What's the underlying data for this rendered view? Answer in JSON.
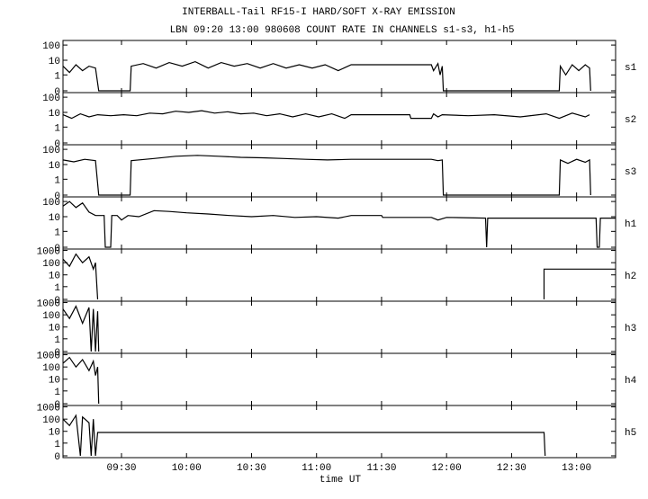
{
  "title": "INTERBALL-Tail RF15-I HARD/SOFT X-RAY EMISSION",
  "subtitle": "LBN 09:20 13:00 980608  COUNT RATE IN CHANNELS s1-s3, h1-h5",
  "x_axis": {
    "label": "time UT",
    "xlim": [
      543,
      798
    ],
    "xticks": [
      {
        "value": 570,
        "label": "09:30"
      },
      {
        "value": 600,
        "label": "10:00"
      },
      {
        "value": 630,
        "label": "10:30"
      },
      {
        "value": 660,
        "label": "11:00"
      },
      {
        "value": 690,
        "label": "11:30"
      },
      {
        "value": 720,
        "label": "12:00"
      },
      {
        "value": 750,
        "label": "12:30"
      },
      {
        "value": 780,
        "label": "13:00"
      }
    ]
  },
  "chart_data": [
    {
      "type": "line",
      "label": "s1",
      "color": "#000000",
      "yscale": "log",
      "ylim": [
        0,
        200
      ],
      "yticks": [
        0,
        1,
        10,
        100
      ],
      "x": [
        543,
        546,
        549,
        552,
        555,
        558,
        559.5,
        574,
        574.5,
        580,
        586,
        592,
        598,
        604,
        610,
        616,
        622,
        628,
        634,
        640,
        646,
        652,
        658,
        664,
        670,
        676,
        713,
        714,
        716,
        717,
        718,
        718.5,
        772,
        772.5,
        775,
        778,
        781,
        784,
        786,
        786.5
      ],
      "values": [
        4,
        1.5,
        5,
        2,
        4,
        3,
        0,
        0,
        4,
        6,
        3,
        7,
        4,
        8,
        3,
        7,
        4,
        6,
        3,
        6,
        3,
        5,
        3,
        5,
        2,
        5,
        5,
        2,
        6,
        1,
        4,
        0,
        0,
        4,
        1,
        5,
        2,
        5,
        3,
        0
      ]
    },
    {
      "type": "line",
      "label": "s2",
      "color": "#000000",
      "yscale": "log",
      "ylim": [
        0,
        200
      ],
      "yticks": [
        0,
        1,
        10,
        100
      ],
      "x": [
        543,
        547,
        551,
        555,
        559,
        565,
        571,
        577,
        583,
        589,
        595,
        601,
        607,
        613,
        619,
        625,
        631,
        637,
        643,
        649,
        655,
        661,
        667,
        673,
        676,
        703,
        703.5,
        713,
        714,
        716,
        718,
        730,
        742,
        754,
        766,
        772,
        778,
        784,
        786
      ],
      "values": [
        7,
        4,
        8,
        5,
        7,
        6,
        7,
        6,
        9,
        8,
        12,
        10,
        13,
        9,
        11,
        8,
        9,
        6,
        8,
        5,
        8,
        5,
        8,
        4,
        7,
        7,
        4,
        4,
        8,
        5,
        7,
        6,
        7,
        5,
        8,
        4,
        9,
        5,
        7
      ]
    },
    {
      "type": "line",
      "label": "s3",
      "color": "#000000",
      "yscale": "log",
      "ylim": [
        0,
        200
      ],
      "yticks": [
        0,
        1,
        10,
        100
      ],
      "x": [
        543,
        548,
        553,
        558,
        559.5,
        574,
        574.5,
        585,
        595,
        605,
        615,
        625,
        635,
        645,
        655,
        665,
        676,
        713,
        716,
        718,
        718.5,
        772,
        772.5,
        776,
        780,
        784,
        786,
        786.5
      ],
      "values": [
        20,
        15,
        22,
        18,
        0,
        0,
        18,
        25,
        35,
        40,
        35,
        30,
        28,
        25,
        22,
        20,
        22,
        22,
        18,
        20,
        0,
        0,
        20,
        12,
        22,
        14,
        20,
        0
      ]
    },
    {
      "type": "line",
      "label": "h1",
      "color": "#000000",
      "yscale": "log",
      "ylim": [
        0,
        200
      ],
      "yticks": [
        0,
        1,
        10,
        100
      ],
      "x": [
        543,
        546,
        549,
        552,
        555,
        558,
        562,
        562.5,
        565,
        565.5,
        568,
        570,
        573,
        578,
        585,
        592,
        600,
        610,
        620,
        630,
        640,
        650,
        660,
        670,
        676,
        690,
        690.5,
        713,
        716,
        720,
        738,
        738.5,
        739,
        760,
        789,
        789.5,
        790.5,
        791,
        798
      ],
      "values": [
        50,
        100,
        40,
        80,
        20,
        12,
        12,
        0,
        0,
        12,
        12,
        6,
        12,
        10,
        25,
        22,
        18,
        15,
        12,
        10,
        12,
        9,
        10,
        8,
        12,
        12,
        9,
        9,
        6,
        9,
        8,
        0,
        8,
        8,
        8,
        0,
        0,
        8,
        8
      ]
    },
    {
      "type": "line",
      "label": "h2",
      "color": "#000000",
      "yscale": "log",
      "ylim": [
        0,
        1300
      ],
      "yticks": [
        0,
        1,
        10,
        100,
        1000
      ],
      "x": [
        543,
        546,
        549,
        552,
        555,
        557,
        558,
        559,
        600,
        765,
        765,
        798
      ],
      "values": [
        200,
        50,
        500,
        100,
        300,
        30,
        100,
        0,
        null,
        0,
        30,
        30
      ]
    },
    {
      "type": "line",
      "label": "h3",
      "color": "#000000",
      "yscale": "log",
      "ylim": [
        0,
        1300
      ],
      "yticks": [
        0,
        1,
        10,
        100,
        1000
      ],
      "x": [
        543,
        546,
        549,
        552,
        555,
        556,
        557,
        558,
        559,
        559.5
      ],
      "values": [
        300,
        50,
        500,
        20,
        400,
        0,
        300,
        0,
        200,
        0
      ]
    },
    {
      "type": "line",
      "label": "h4",
      "color": "#000000",
      "yscale": "log",
      "ylim": [
        0,
        1300
      ],
      "yticks": [
        0,
        1,
        10,
        100,
        1000
      ],
      "x": [
        543,
        546,
        549,
        552,
        555,
        557,
        558,
        559,
        559.5
      ],
      "values": [
        200,
        600,
        100,
        400,
        50,
        300,
        20,
        100,
        0
      ]
    },
    {
      "type": "line",
      "label": "h5",
      "color": "#000000",
      "yscale": "log",
      "ylim": [
        0,
        1300
      ],
      "yticks": [
        0,
        1,
        10,
        100,
        1000
      ],
      "x": [
        543,
        546,
        549,
        551,
        552,
        555,
        556,
        557,
        558,
        559,
        765,
        765.5
      ],
      "values": [
        100,
        30,
        200,
        0,
        150,
        50,
        0,
        100,
        0,
        8,
        8,
        0
      ]
    }
  ]
}
